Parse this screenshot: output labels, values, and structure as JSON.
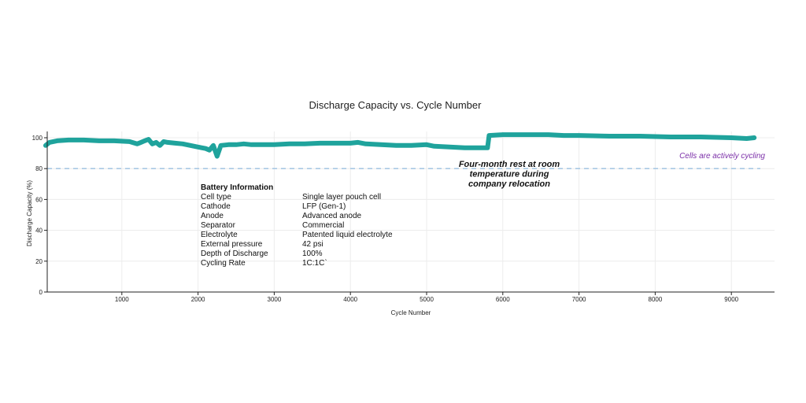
{
  "chart_data": {
    "type": "line",
    "title": "Discharge Capacity vs. Cycle Number",
    "xlabel": "Cycle Number",
    "ylabel": "Discharge Capacity (%)",
    "xlim": [
      0,
      9700
    ],
    "ylim": [
      0,
      105
    ],
    "xticks": [
      1000,
      2000,
      3000,
      4000,
      5000,
      6000,
      7000,
      8000,
      9000
    ],
    "yticks": [
      0,
      20,
      40,
      60,
      80,
      100
    ],
    "grid": true,
    "series": [
      {
        "color": "#1fa39c",
        "points": [
          [
            0,
            95
          ],
          [
            50,
            97
          ],
          [
            150,
            98
          ],
          [
            300,
            98.5
          ],
          [
            500,
            98.5
          ],
          [
            700,
            98
          ],
          [
            900,
            98
          ],
          [
            1100,
            97.5
          ],
          [
            1200,
            96
          ],
          [
            1250,
            97
          ],
          [
            1300,
            98
          ],
          [
            1350,
            99
          ],
          [
            1400,
            96
          ],
          [
            1450,
            97
          ],
          [
            1500,
            95
          ],
          [
            1550,
            97.5
          ],
          [
            1600,
            97
          ],
          [
            1700,
            96.5
          ],
          [
            1800,
            96
          ],
          [
            1900,
            95
          ],
          [
            2000,
            94
          ],
          [
            2100,
            93
          ],
          [
            2150,
            92
          ],
          [
            2200,
            95
          ],
          [
            2250,
            88
          ],
          [
            2300,
            95
          ],
          [
            2400,
            95.5
          ],
          [
            2500,
            95.5
          ],
          [
            2600,
            96
          ],
          [
            2700,
            95.5
          ],
          [
            2800,
            95.5
          ],
          [
            3000,
            95.5
          ],
          [
            3200,
            96
          ],
          [
            3400,
            96
          ],
          [
            3600,
            96.5
          ],
          [
            3800,
            96.5
          ],
          [
            4000,
            96.5
          ],
          [
            4100,
            97
          ],
          [
            4200,
            96
          ],
          [
            4400,
            95.5
          ],
          [
            4600,
            95
          ],
          [
            4800,
            95
          ],
          [
            5000,
            95.5
          ],
          [
            5100,
            94.5
          ],
          [
            5300,
            94
          ],
          [
            5500,
            93.5
          ],
          [
            5700,
            93.5
          ],
          [
            5800,
            93.5
          ],
          [
            5820,
            101.5
          ],
          [
            6000,
            102
          ],
          [
            6200,
            102
          ],
          [
            6400,
            102
          ],
          [
            6600,
            102
          ],
          [
            6800,
            101.5
          ],
          [
            7000,
            101.5
          ],
          [
            7400,
            101
          ],
          [
            7800,
            101
          ],
          [
            8200,
            100.5
          ],
          [
            8600,
            100.5
          ],
          [
            9000,
            100
          ],
          [
            9200,
            99.5
          ],
          [
            9300,
            100
          ]
        ]
      }
    ],
    "reference_line": {
      "y": 80,
      "color": "#a8c8e4",
      "style": "dashed"
    },
    "annotations": {
      "cycling": {
        "text": "Cells are actively cycling",
        "color": "#7b2fa8"
      },
      "rest": {
        "lines": [
          "Four-month rest at room",
          "temperature during",
          "company relocation"
        ]
      }
    },
    "info_table": {
      "heading": "Battery Information",
      "rows": [
        [
          "Cell type",
          "Single layer pouch cell"
        ],
        [
          "Cathode",
          "LFP (Gen-1)"
        ],
        [
          "Anode",
          "Advanced anode"
        ],
        [
          "Separator",
          "Commercial"
        ],
        [
          "Electrolyte",
          "Patented liquid electrolyte"
        ],
        [
          "External pressure",
          "42 psi"
        ],
        [
          "Depth of Discharge",
          "100%"
        ],
        [
          "Cycling Rate",
          "1C:1C`"
        ]
      ]
    }
  }
}
